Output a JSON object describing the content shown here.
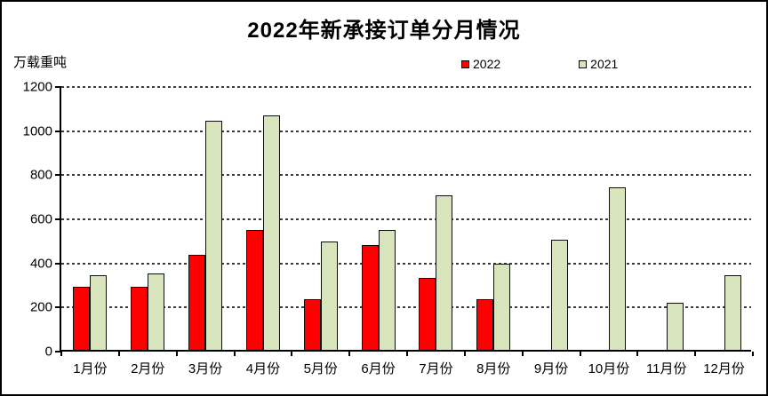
{
  "window": {
    "title": "2022年新承接订单分月情况"
  },
  "chart_data": {
    "type": "bar",
    "title": "2022年新承接订单分月情况",
    "ylabel": "万载重吨",
    "xlabel": "",
    "categories": [
      "1月份",
      "2月份",
      "3月份",
      "4月份",
      "5月份",
      "6月份",
      "7月份",
      "8月份",
      "9月份",
      "10月份",
      "11月份",
      "12月份"
    ],
    "series": [
      {
        "name": "2022",
        "color": "#ff0000",
        "values": [
          285,
          285,
          430,
          545,
          230,
          475,
          325,
          230,
          null,
          null,
          null,
          null
        ]
      },
      {
        "name": "2021",
        "color": "#d8e4bc",
        "values": [
          340,
          345,
          1040,
          1065,
          490,
          545,
          700,
          390,
          500,
          735,
          215,
          340
        ]
      }
    ],
    "ylim": [
      0,
      1200
    ],
    "ytick_step": 200,
    "grid": true,
    "gridline_style": "dashed",
    "legend_position": "top",
    "bar_border_color": "#000000",
    "background_color": "#ffffff"
  }
}
